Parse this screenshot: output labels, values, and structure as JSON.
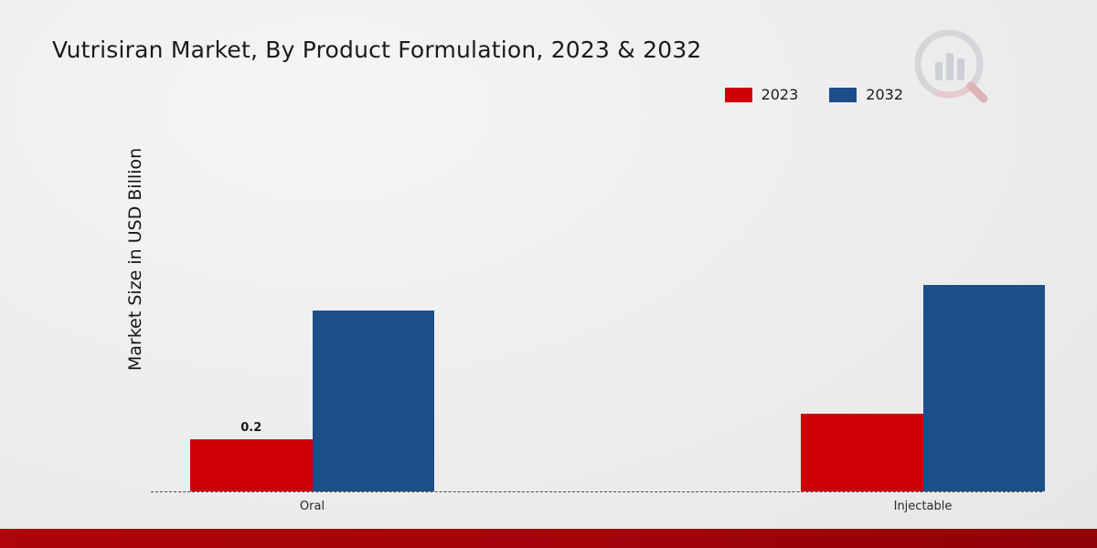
{
  "title": "Vutrisiran Market, By Product Formulation, 2023 & 2032",
  "ylabel": "Market Size in USD Billion",
  "legend": [
    {
      "label": "2023",
      "color": "#cc0005"
    },
    {
      "label": "2032",
      "color": "#1c4e8a"
    }
  ],
  "chart_data": {
    "type": "bar",
    "title": "Vutrisiran Market, By Product Formulation, 2023 & 2032",
    "categories": [
      "Oral",
      "Injectable"
    ],
    "series": [
      {
        "name": "2023",
        "color": "#cc0005",
        "values": [
          0.2,
          0.3
        ],
        "labels": [
          "0.2",
          ""
        ]
      },
      {
        "name": "2032",
        "color": "#1c4e8a",
        "values": [
          0.7,
          0.8
        ],
        "labels": [
          "",
          ""
        ]
      }
    ],
    "xlabel": "",
    "ylabel": "Market Size in USD Billion",
    "ylim": [
      0,
      1.0
    ],
    "grid": false,
    "legend_position": "top-right",
    "baseline_style": "dashed",
    "data_label_shown": "Oral 2023 bar labeled 0.2"
  },
  "colors": {
    "accent_red": "#cc0005",
    "accent_blue": "#1c4e8a",
    "footer_strip": "#a10309",
    "background": "#ececec"
  }
}
